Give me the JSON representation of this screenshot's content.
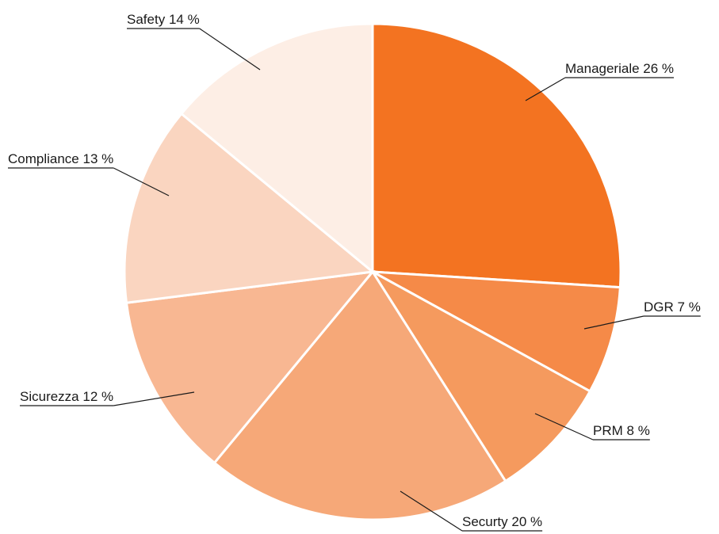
{
  "chart_data": {
    "type": "pie",
    "categories": [
      "Manageriale",
      "DGR",
      "PRM",
      "Securty",
      "Sicurezza",
      "Compliance",
      "Safety"
    ],
    "values": [
      26,
      7,
      8,
      20,
      12,
      13,
      14
    ],
    "value_labels": [
      "26 %",
      "7 %",
      "8 %",
      "20 %",
      "12 %",
      "13 %",
      "14 %"
    ],
    "colors": [
      "#f37321",
      "#f58a48",
      "#f59a5e",
      "#f6a878",
      "#f8b792",
      "#fad5c0",
      "#fdeee5"
    ]
  }
}
